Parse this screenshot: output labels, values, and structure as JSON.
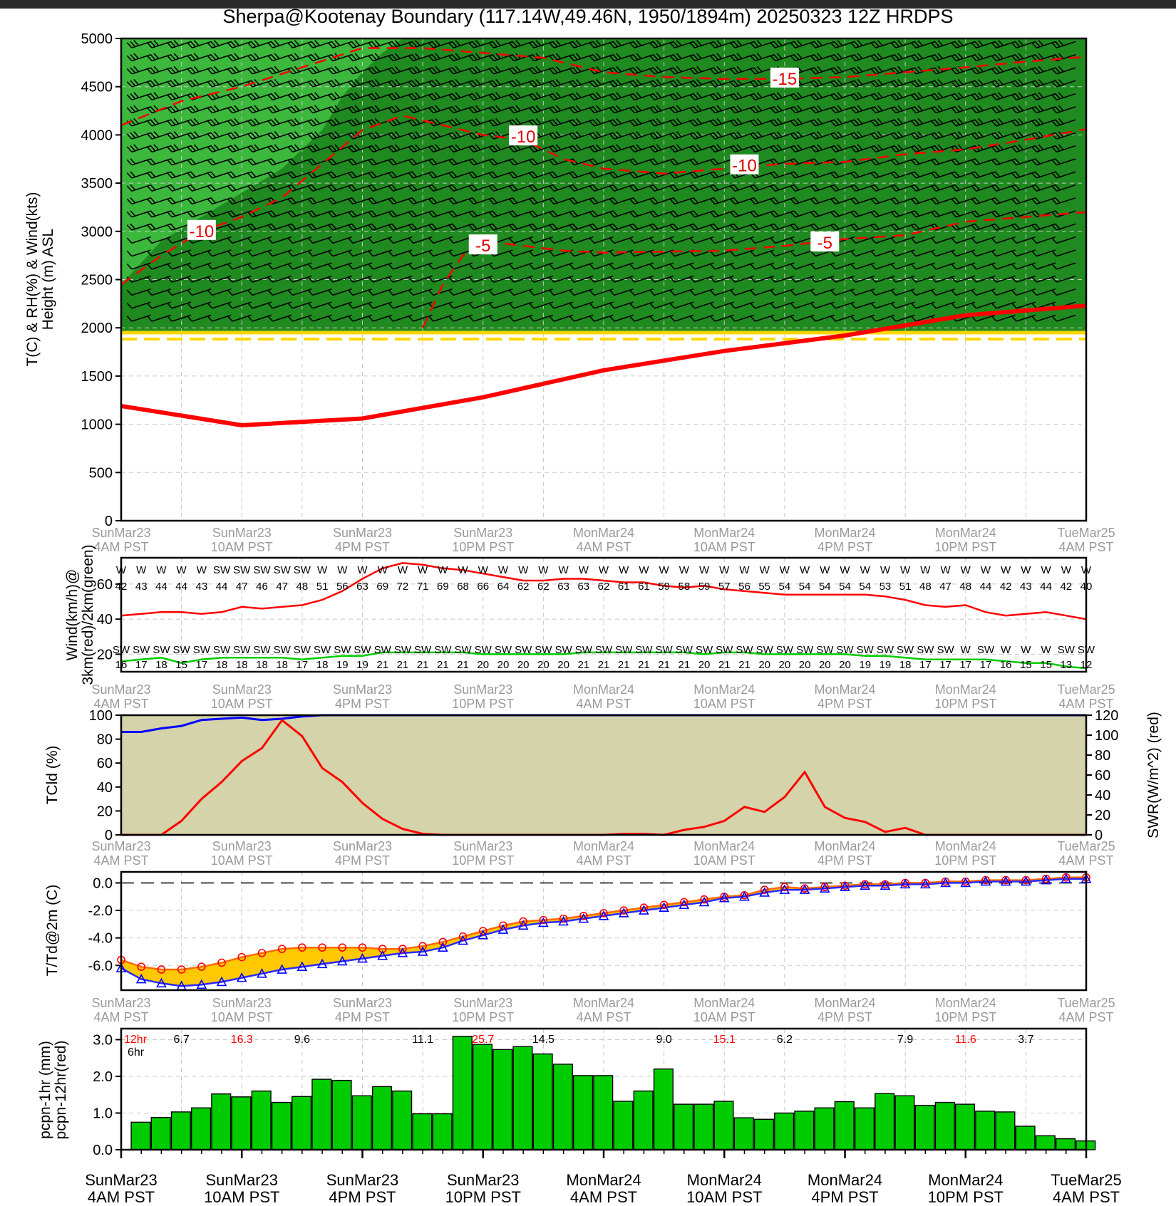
{
  "title": "Sherpa@Kootenay Boundary (117.14W,49.46N, 1950/1894m)  20250323  12Z  HRDPS",
  "time_labels": [
    [
      "SunMar23",
      "4AM PST"
    ],
    [
      "SunMar23",
      "10AM PST"
    ],
    [
      "SunMar23",
      "4PM PST"
    ],
    [
      "SunMar23",
      "10PM PST"
    ],
    [
      "MonMar24",
      "4AM PST"
    ],
    [
      "MonMar24",
      "10AM PST"
    ],
    [
      "MonMar24",
      "4PM PST"
    ],
    [
      "MonMar24",
      "10PM PST"
    ],
    [
      "TueMar25",
      "4AM PST"
    ]
  ],
  "colors": {
    "rh_light": "#3cb83c",
    "rh_dark": "#1f8a1f",
    "temp": "#ff0000",
    "freezing": "#ffd700",
    "wind3km": "#ff0000",
    "wind2km": "#00cc00",
    "cloud_fill": "#d4d3a9",
    "cloud": "#0000ff",
    "swr": "#ff0000",
    "td_fill": "#ffc800",
    "precip": "#00cc00"
  },
  "chart_data": [
    {
      "type": "area",
      "name": "T(C) & RH(%) & Wind(kts) Height (m) ASL",
      "ylabel": [
        "T(C) & RH(%) & Wind(kts)",
        "Height (m) ASL"
      ],
      "ylim": [
        0,
        5000
      ],
      "yticks": [
        "0",
        "500",
        "1000",
        "1500",
        "2000",
        "2500",
        "3000",
        "3500",
        "4000",
        "4500",
        "5000"
      ],
      "terrain_height": 1950,
      "freezing_level": {
        "x": [
          0,
          6,
          12,
          18,
          24,
          30,
          36,
          42,
          48
        ],
        "y": [
          1190,
          990,
          1060,
          1280,
          1560,
          1760,
          1920,
          2130,
          2230
        ]
      },
      "temperature_contours": [
        {
          "label": "-15",
          "x": [
            0,
            3,
            6,
            9,
            12,
            15,
            18,
            21,
            24,
            27,
            30,
            33,
            36,
            39,
            42,
            45,
            48
          ],
          "y": [
            4100,
            4350,
            4500,
            4700,
            4900,
            4900,
            4850,
            4800,
            4650,
            4600,
            4580,
            4580,
            4600,
            4650,
            4700,
            4760,
            4810
          ]
        },
        {
          "label": "-10",
          "x": [
            0,
            2,
            4,
            6,
            8,
            10,
            12,
            14,
            16,
            18,
            20,
            22,
            24,
            27,
            30,
            33,
            36,
            39,
            42,
            45,
            48
          ],
          "y": [
            2450,
            2750,
            3000,
            3150,
            3350,
            3700,
            4050,
            4200,
            4100,
            4000,
            3950,
            3750,
            3650,
            3600,
            3650,
            3700,
            3720,
            3800,
            3850,
            3950,
            4060
          ]
        },
        {
          "label": "-5",
          "x": [
            15,
            16,
            17,
            18,
            20,
            22,
            24,
            27,
            30,
            33,
            36,
            39,
            42,
            45,
            48
          ],
          "y": [
            2000,
            2450,
            2750,
            2900,
            2850,
            2800,
            2780,
            2790,
            2800,
            2850,
            2920,
            2960,
            3100,
            3150,
            3200
          ]
        }
      ],
      "contour_labels": [
        "-10",
        "-5",
        "-10",
        "-10",
        "-15",
        "-5"
      ],
      "rh_boundary": {
        "x": [
          0,
          2,
          4,
          6,
          8,
          10,
          11,
          12,
          13,
          14
        ],
        "y": [
          2450,
          2900,
          3150,
          3400,
          3650,
          4050,
          4400,
          4650,
          4850,
          5000
        ]
      }
    },
    {
      "type": "line",
      "name": "Wind(km/h)@ 3km(red)/2km(green)",
      "ylabel": [
        "Wind(km/h)@",
        "3km(red)/2km(green)"
      ],
      "ylim": [
        10,
        75
      ],
      "yticks": [
        "20",
        "40",
        "60"
      ],
      "series": [
        {
          "name": "3km",
          "dir": [
            "W",
            "W",
            "W",
            "W",
            "W",
            "SW",
            "SW",
            "SW",
            "SW",
            "SW",
            "W",
            "W",
            "W",
            "W",
            "W",
            "W",
            "W",
            "W",
            "W",
            "W",
            "W",
            "W",
            "W",
            "W",
            "W",
            "W",
            "W",
            "W",
            "W",
            "W",
            "W",
            "W",
            "W",
            "W",
            "W",
            "W",
            "W",
            "W",
            "W",
            "W",
            "W",
            "W",
            "W",
            "W",
            "W",
            "W",
            "W",
            "W",
            "W"
          ],
          "values": [
            42,
            43,
            44,
            44,
            43,
            44,
            47,
            46,
            47,
            48,
            51,
            56,
            63,
            69,
            72,
            71,
            69,
            68,
            66,
            64,
            62,
            62,
            63,
            63,
            62,
            61,
            61,
            59,
            58,
            59,
            57,
            56,
            55,
            54,
            54,
            54,
            54,
            54,
            53,
            51,
            48,
            47,
            48,
            44,
            42,
            43,
            44,
            42,
            40
          ]
        },
        {
          "name": "2km",
          "dir": [
            "SW",
            "SW",
            "SW",
            "SW",
            "SW",
            "SW",
            "SW",
            "SW",
            "SW",
            "SW",
            "SW",
            "SW",
            "SW",
            "SW",
            "SW",
            "SW",
            "SW",
            "SW",
            "SW",
            "SW",
            "SW",
            "SW",
            "SW",
            "SW",
            "SW",
            "SW",
            "SW",
            "SW",
            "SW",
            "SW",
            "SW",
            "SW",
            "SW",
            "SW",
            "SW",
            "SW",
            "SW",
            "SW",
            "SW",
            "SW",
            "SW",
            "SW",
            "W",
            "SW",
            "W",
            "W",
            "W",
            "SW",
            "SW"
          ],
          "values": [
            16,
            17,
            18,
            15,
            17,
            18,
            18,
            18,
            18,
            17,
            18,
            19,
            19,
            21,
            21,
            21,
            21,
            21,
            20,
            20,
            20,
            20,
            20,
            21,
            21,
            21,
            21,
            21,
            21,
            20,
            21,
            21,
            20,
            20,
            20,
            20,
            20,
            19,
            19,
            18,
            17,
            17,
            17,
            17,
            16,
            15,
            15,
            13,
            12
          ]
        }
      ]
    },
    {
      "type": "line",
      "name": "TCld (%) / SWR(W/m^2) (red)",
      "ylabel": "TCld (%)",
      "y2label": "SWR(W/m^2) (red)",
      "ylim": [
        0,
        100
      ],
      "y2lim": [
        0,
        120
      ],
      "yticks": [
        "0",
        "20",
        "40",
        "60",
        "80",
        "100"
      ],
      "y2ticks": [
        "0",
        "20",
        "40",
        "60",
        "80",
        "100",
        "120"
      ],
      "series": [
        {
          "name": "TCld",
          "values": [
            86,
            86,
            89,
            91,
            96,
            97,
            98,
            96,
            97,
            99,
            100,
            100,
            100,
            100,
            100,
            100,
            100,
            100,
            100,
            100,
            100,
            100,
            100,
            100,
            100,
            100,
            100,
            100,
            100,
            100,
            100,
            100,
            100,
            100,
            100,
            100,
            100,
            100,
            100,
            100,
            100,
            100,
            100,
            100,
            100,
            100,
            100,
            100,
            100
          ]
        },
        {
          "name": "SWR",
          "values": [
            0,
            0,
            0,
            14,
            36,
            53,
            74,
            87,
            115,
            99,
            67,
            53,
            32,
            16,
            6,
            1,
            0,
            0,
            0,
            0,
            0,
            0,
            0,
            0,
            0,
            1,
            1,
            0,
            5,
            8,
            14,
            28,
            23,
            38,
            63,
            28,
            17,
            13,
            3,
            7,
            0,
            0,
            0,
            0,
            0,
            0,
            0,
            0,
            0
          ]
        }
      ]
    },
    {
      "type": "line",
      "name": "T/Td@2m (C)",
      "ylabel": "T/Td@2m (C)",
      "ylim": [
        -7.8,
        0.8
      ],
      "yticks": [
        "0.0",
        "-2.0",
        "-4.0",
        "-6.0"
      ],
      "series": [
        {
          "name": "T",
          "values": [
            -5.6,
            -6.1,
            -6.3,
            -6.3,
            -6.1,
            -5.8,
            -5.4,
            -5.1,
            -4.8,
            -4.7,
            -4.7,
            -4.7,
            -4.7,
            -4.8,
            -4.8,
            -4.6,
            -4.3,
            -3.9,
            -3.5,
            -3.1,
            -2.8,
            -2.7,
            -2.6,
            -2.4,
            -2.2,
            -2.0,
            -1.8,
            -1.6,
            -1.4,
            -1.2,
            -1.0,
            -0.9,
            -0.5,
            -0.3,
            -0.4,
            -0.3,
            -0.2,
            -0.1,
            -0.1,
            0.0,
            0.0,
            0.1,
            0.1,
            0.2,
            0.2,
            0.2,
            0.3,
            0.4,
            0.4
          ]
        },
        {
          "name": "Td",
          "values": [
            -6.2,
            -7.0,
            -7.3,
            -7.5,
            -7.4,
            -7.2,
            -6.9,
            -6.6,
            -6.3,
            -6.1,
            -5.9,
            -5.7,
            -5.5,
            -5.3,
            -5.1,
            -5.0,
            -4.7,
            -4.2,
            -3.8,
            -3.4,
            -3.1,
            -2.9,
            -2.8,
            -2.6,
            -2.4,
            -2.2,
            -2.0,
            -1.8,
            -1.6,
            -1.4,
            -1.1,
            -1.0,
            -0.7,
            -0.5,
            -0.5,
            -0.4,
            -0.3,
            -0.2,
            -0.2,
            -0.1,
            -0.1,
            0.0,
            0.0,
            0.1,
            0.1,
            0.1,
            0.2,
            0.3,
            0.3
          ]
        }
      ]
    },
    {
      "type": "bar",
      "name": "pcpn-1hr (mm) / pcpn-12hr(red)",
      "ylabel": [
        "pcpn-1hr (mm)",
        "pcpn-12hr(red)"
      ],
      "ylim": [
        0,
        3.3
      ],
      "yticks": [
        "0.0",
        "1.0",
        "2.0",
        "3.0"
      ],
      "values": [
        0.75,
        0.88,
        1.03,
        1.14,
        1.52,
        1.44,
        1.6,
        1.29,
        1.45,
        1.92,
        1.89,
        1.47,
        1.72,
        1.6,
        0.98,
        0.98,
        3.09,
        2.87,
        2.73,
        2.81,
        2.61,
        2.33,
        2.02,
        2.02,
        1.32,
        1.6,
        2.2,
        1.24,
        1.24,
        1.32,
        0.87,
        0.83,
        1.0,
        1.05,
        1.14,
        1.31,
        1.14,
        1.53,
        1.47,
        1.21,
        1.29,
        1.24,
        1.05,
        1.03,
        0.64,
        0.38,
        0.3,
        0.24,
        0
      ],
      "legend": [
        "12hr",
        "6hr"
      ],
      "accumulations": [
        {
          "value": "6.7",
          "x": 3,
          "color": "#000000"
        },
        {
          "value": "16.3",
          "x": 6,
          "color": "#ff0000"
        },
        {
          "value": "9.6",
          "x": 9,
          "color": "#000000"
        },
        {
          "value": "11.1",
          "x": 15,
          "color": "#000000"
        },
        {
          "value": "25.7",
          "x": 18,
          "color": "#ff0000"
        },
        {
          "value": "14.5",
          "x": 21,
          "color": "#000000"
        },
        {
          "value": "9.0",
          "x": 27,
          "color": "#000000"
        },
        {
          "value": "15.1",
          "x": 30,
          "color": "#ff0000"
        },
        {
          "value": "6.2",
          "x": 33,
          "color": "#000000"
        },
        {
          "value": "7.9",
          "x": 39,
          "color": "#000000"
        },
        {
          "value": "11.6",
          "x": 42,
          "color": "#ff0000"
        },
        {
          "value": "3.7",
          "x": 45,
          "color": "#000000"
        }
      ]
    }
  ]
}
